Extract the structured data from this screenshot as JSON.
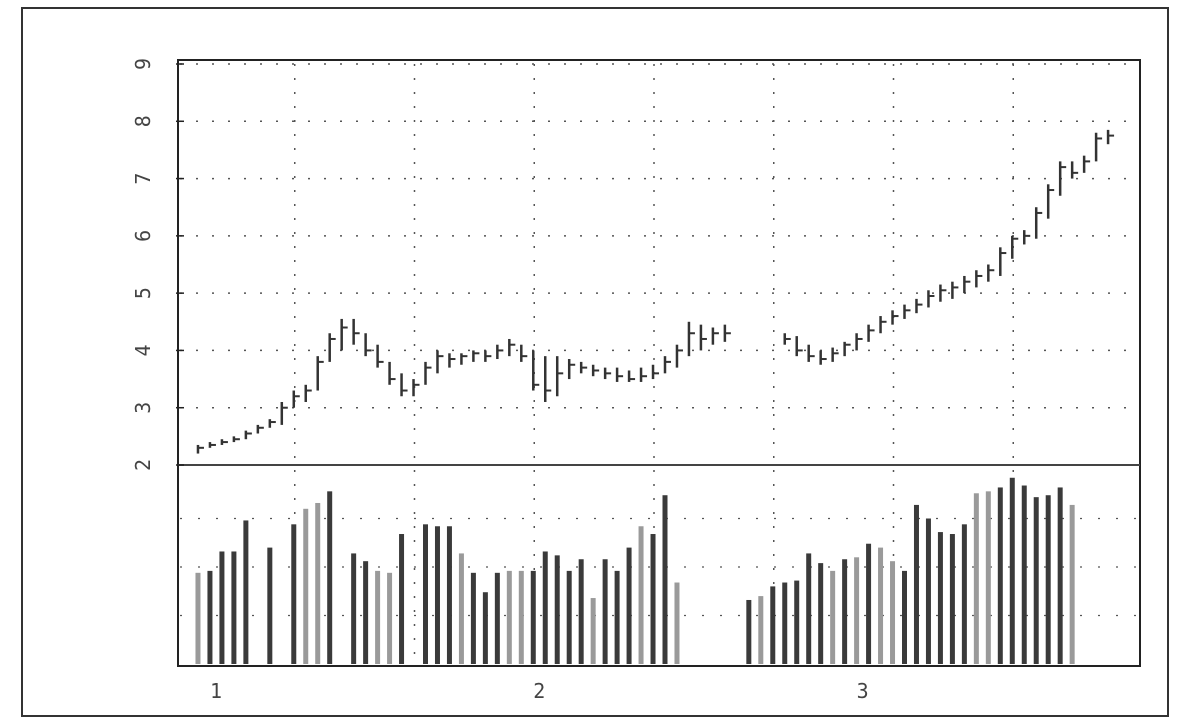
{
  "chart_data": {
    "type": "bar",
    "title": "",
    "xlabel": "",
    "ylabel": "",
    "price_panel": {
      "style": "ohlc-bars",
      "ylim": [
        2,
        9
      ],
      "y_ticks": [
        {
          "value": 3,
          "label": "3"
        },
        {
          "value": 4,
          "label": "4"
        },
        {
          "value": 5,
          "label": "5"
        },
        {
          "value": 6,
          "label": "6"
        },
        {
          "value": 7,
          "label": "7"
        },
        {
          "value": 8,
          "label": "8"
        },
        {
          "value": 9,
          "label": "9"
        }
      ],
      "baseline_label": "2",
      "series": [
        {
          "x": 1,
          "high": 2.35,
          "low": 2.2,
          "close": 2.3
        },
        {
          "x": 2,
          "high": 2.4,
          "low": 2.3,
          "close": 2.35
        },
        {
          "x": 3,
          "high": 2.45,
          "low": 2.35,
          "close": 2.4
        },
        {
          "x": 4,
          "high": 2.5,
          "low": 2.4,
          "close": 2.45
        },
        {
          "x": 5,
          "high": 2.6,
          "low": 2.45,
          "close": 2.55
        },
        {
          "x": 6,
          "high": 2.7,
          "low": 2.55,
          "close": 2.65
        },
        {
          "x": 7,
          "high": 2.8,
          "low": 2.65,
          "close": 2.75
        },
        {
          "x": 8,
          "high": 3.1,
          "low": 2.7,
          "close": 3.0
        },
        {
          "x": 9,
          "high": 3.3,
          "low": 3.0,
          "close": 3.2
        },
        {
          "x": 10,
          "high": 3.4,
          "low": 3.1,
          "close": 3.3
        },
        {
          "x": 11,
          "high": 3.9,
          "low": 3.3,
          "close": 3.8
        },
        {
          "x": 12,
          "high": 4.3,
          "low": 3.8,
          "close": 4.2
        },
        {
          "x": 13,
          "high": 4.55,
          "low": 4.0,
          "close": 4.4
        },
        {
          "x": 14,
          "high": 4.55,
          "low": 4.1,
          "close": 4.3
        },
        {
          "x": 15,
          "high": 4.3,
          "low": 3.9,
          "close": 4.0
        },
        {
          "x": 16,
          "high": 4.1,
          "low": 3.7,
          "close": 3.8
        },
        {
          "x": 17,
          "high": 3.8,
          "low": 3.4,
          "close": 3.5
        },
        {
          "x": 18,
          "high": 3.6,
          "low": 3.2,
          "close": 3.3
        },
        {
          "x": 19,
          "high": 3.5,
          "low": 3.2,
          "close": 3.4
        },
        {
          "x": 20,
          "high": 3.8,
          "low": 3.4,
          "close": 3.7
        },
        {
          "x": 21,
          "high": 4.0,
          "low": 3.6,
          "close": 3.9
        },
        {
          "x": 22,
          "high": 3.95,
          "low": 3.7,
          "close": 3.85
        },
        {
          "x": 23,
          "high": 3.95,
          "low": 3.75,
          "close": 3.9
        },
        {
          "x": 24,
          "high": 4.0,
          "low": 3.8,
          "close": 3.95
        },
        {
          "x": 25,
          "high": 4.0,
          "low": 3.8,
          "close": 3.9
        },
        {
          "x": 26,
          "high": 4.1,
          "low": 3.85,
          "close": 4.0
        },
        {
          "x": 27,
          "high": 4.2,
          "low": 3.9,
          "close": 4.1
        },
        {
          "x": 28,
          "high": 4.1,
          "low": 3.8,
          "close": 3.9
        },
        {
          "x": 29,
          "high": 4.0,
          "low": 3.3,
          "close": 3.4
        },
        {
          "x": 30,
          "high": 3.9,
          "low": 3.1,
          "close": 3.3
        },
        {
          "x": 31,
          "high": 3.9,
          "low": 3.2,
          "close": 3.6
        },
        {
          "x": 32,
          "high": 3.85,
          "low": 3.5,
          "close": 3.75
        },
        {
          "x": 33,
          "high": 3.8,
          "low": 3.6,
          "close": 3.7
        },
        {
          "x": 34,
          "high": 3.75,
          "low": 3.55,
          "close": 3.65
        },
        {
          "x": 35,
          "high": 3.7,
          "low": 3.5,
          "close": 3.6
        },
        {
          "x": 36,
          "high": 3.7,
          "low": 3.45,
          "close": 3.55
        },
        {
          "x": 37,
          "high": 3.65,
          "low": 3.45,
          "close": 3.5
        },
        {
          "x": 38,
          "high": 3.7,
          "low": 3.45,
          "close": 3.55
        },
        {
          "x": 39,
          "high": 3.75,
          "low": 3.5,
          "close": 3.6
        },
        {
          "x": 40,
          "high": 3.9,
          "low": 3.6,
          "close": 3.8
        },
        {
          "x": 41,
          "high": 4.1,
          "low": 3.7,
          "close": 4.0
        },
        {
          "x": 42,
          "high": 4.5,
          "low": 3.9,
          "close": 4.3
        },
        {
          "x": 43,
          "high": 4.45,
          "low": 4.0,
          "close": 4.2
        },
        {
          "x": 44,
          "high": 4.4,
          "low": 4.1,
          "close": 4.3
        },
        {
          "x": 45,
          "high": 4.45,
          "low": 4.15,
          "close": 4.3
        },
        {
          "x": 50,
          "high": 4.3,
          "low": 4.1,
          "close": 4.2
        },
        {
          "x": 51,
          "high": 4.25,
          "low": 3.9,
          "close": 4.0
        },
        {
          "x": 52,
          "high": 4.1,
          "low": 3.8,
          "close": 3.9
        },
        {
          "x": 53,
          "high": 4.0,
          "low": 3.75,
          "close": 3.85
        },
        {
          "x": 54,
          "high": 4.05,
          "low": 3.8,
          "close": 3.95
        },
        {
          "x": 55,
          "high": 4.15,
          "low": 3.9,
          "close": 4.1
        },
        {
          "x": 56,
          "high": 4.3,
          "low": 4.0,
          "close": 4.2
        },
        {
          "x": 57,
          "high": 4.45,
          "low": 4.15,
          "close": 4.35
        },
        {
          "x": 58,
          "high": 4.6,
          "low": 4.3,
          "close": 4.5
        },
        {
          "x": 59,
          "high": 4.7,
          "low": 4.45,
          "close": 4.6
        },
        {
          "x": 60,
          "high": 4.8,
          "low": 4.55,
          "close": 4.7
        },
        {
          "x": 61,
          "high": 4.9,
          "low": 4.65,
          "close": 4.8
        },
        {
          "x": 62,
          "high": 5.05,
          "low": 4.75,
          "close": 4.95
        },
        {
          "x": 63,
          "high": 5.15,
          "low": 4.85,
          "close": 5.05
        },
        {
          "x": 64,
          "high": 5.2,
          "low": 4.9,
          "close": 5.1
        },
        {
          "x": 65,
          "high": 5.3,
          "low": 5.0,
          "close": 5.2
        },
        {
          "x": 66,
          "high": 5.4,
          "low": 5.1,
          "close": 5.3
        },
        {
          "x": 67,
          "high": 5.5,
          "low": 5.2,
          "close": 5.4
        },
        {
          "x": 68,
          "high": 5.8,
          "low": 5.3,
          "close": 5.7
        },
        {
          "x": 69,
          "high": 6.0,
          "low": 5.6,
          "close": 5.95
        },
        {
          "x": 70,
          "high": 6.1,
          "low": 5.85,
          "close": 6.0
        },
        {
          "x": 71,
          "high": 6.5,
          "low": 5.95,
          "close": 6.4
        },
        {
          "x": 72,
          "high": 6.9,
          "low": 6.3,
          "close": 6.8
        },
        {
          "x": 73,
          "high": 7.3,
          "low": 6.7,
          "close": 7.2
        },
        {
          "x": 74,
          "high": 7.3,
          "low": 7.0,
          "close": 7.1
        },
        {
          "x": 75,
          "high": 7.4,
          "low": 7.1,
          "close": 7.3
        },
        {
          "x": 76,
          "high": 7.8,
          "low": 7.3,
          "close": 7.7
        },
        {
          "x": 77,
          "high": 7.85,
          "low": 7.6,
          "close": 7.75
        }
      ]
    },
    "volume_panel": {
      "style": "vertical-bars",
      "ymax": 100,
      "values": [
        {
          "x": 1,
          "v": 47,
          "tone": "light"
        },
        {
          "x": 2,
          "v": 48,
          "tone": "dark"
        },
        {
          "x": 3,
          "v": 58,
          "tone": "dark"
        },
        {
          "x": 4,
          "v": 58,
          "tone": "dark"
        },
        {
          "x": 5,
          "v": 74,
          "tone": "dark"
        },
        {
          "x": 7,
          "v": 60,
          "tone": "dark"
        },
        {
          "x": 9,
          "v": 72,
          "tone": "dark"
        },
        {
          "x": 10,
          "v": 80,
          "tone": "light"
        },
        {
          "x": 11,
          "v": 83,
          "tone": "light"
        },
        {
          "x": 12,
          "v": 89,
          "tone": "dark"
        },
        {
          "x": 14,
          "v": 57,
          "tone": "dark"
        },
        {
          "x": 15,
          "v": 53,
          "tone": "dark"
        },
        {
          "x": 16,
          "v": 48,
          "tone": "light"
        },
        {
          "x": 17,
          "v": 47,
          "tone": "light"
        },
        {
          "x": 18,
          "v": 67,
          "tone": "dark"
        },
        {
          "x": 20,
          "v": 72,
          "tone": "dark"
        },
        {
          "x": 21,
          "v": 71,
          "tone": "dark"
        },
        {
          "x": 22,
          "v": 71,
          "tone": "dark"
        },
        {
          "x": 23,
          "v": 57,
          "tone": "light"
        },
        {
          "x": 24,
          "v": 47,
          "tone": "dark"
        },
        {
          "x": 25,
          "v": 37,
          "tone": "dark"
        },
        {
          "x": 26,
          "v": 47,
          "tone": "dark"
        },
        {
          "x": 27,
          "v": 48,
          "tone": "light"
        },
        {
          "x": 28,
          "v": 48,
          "tone": "light"
        },
        {
          "x": 29,
          "v": 48,
          "tone": "dark"
        },
        {
          "x": 30,
          "v": 58,
          "tone": "dark"
        },
        {
          "x": 31,
          "v": 56,
          "tone": "dark"
        },
        {
          "x": 32,
          "v": 48,
          "tone": "dark"
        },
        {
          "x": 33,
          "v": 54,
          "tone": "dark"
        },
        {
          "x": 34,
          "v": 34,
          "tone": "light"
        },
        {
          "x": 35,
          "v": 54,
          "tone": "dark"
        },
        {
          "x": 36,
          "v": 48,
          "tone": "dark"
        },
        {
          "x": 37,
          "v": 60,
          "tone": "dark"
        },
        {
          "x": 38,
          "v": 71,
          "tone": "light"
        },
        {
          "x": 39,
          "v": 67,
          "tone": "dark"
        },
        {
          "x": 40,
          "v": 87,
          "tone": "dark"
        },
        {
          "x": 41,
          "v": 42,
          "tone": "light"
        },
        {
          "x": 47,
          "v": 33,
          "tone": "dark"
        },
        {
          "x": 48,
          "v": 35,
          "tone": "light"
        },
        {
          "x": 49,
          "v": 40,
          "tone": "dark"
        },
        {
          "x": 50,
          "v": 42,
          "tone": "dark"
        },
        {
          "x": 51,
          "v": 43,
          "tone": "dark"
        },
        {
          "x": 52,
          "v": 57,
          "tone": "dark"
        },
        {
          "x": 53,
          "v": 52,
          "tone": "dark"
        },
        {
          "x": 54,
          "v": 48,
          "tone": "light"
        },
        {
          "x": 55,
          "v": 54,
          "tone": "dark"
        },
        {
          "x": 56,
          "v": 55,
          "tone": "light"
        },
        {
          "x": 57,
          "v": 62,
          "tone": "dark"
        },
        {
          "x": 58,
          "v": 60,
          "tone": "light"
        },
        {
          "x": 59,
          "v": 53,
          "tone": "light"
        },
        {
          "x": 60,
          "v": 48,
          "tone": "dark"
        },
        {
          "x": 61,
          "v": 82,
          "tone": "dark"
        },
        {
          "x": 62,
          "v": 75,
          "tone": "dark"
        },
        {
          "x": 63,
          "v": 68,
          "tone": "dark"
        },
        {
          "x": 64,
          "v": 67,
          "tone": "dark"
        },
        {
          "x": 65,
          "v": 72,
          "tone": "dark"
        },
        {
          "x": 66,
          "v": 88,
          "tone": "light"
        },
        {
          "x": 67,
          "v": 89,
          "tone": "light"
        },
        {
          "x": 68,
          "v": 91,
          "tone": "dark"
        },
        {
          "x": 69,
          "v": 96,
          "tone": "dark"
        },
        {
          "x": 70,
          "v": 92,
          "tone": "dark"
        },
        {
          "x": 71,
          "v": 86,
          "tone": "dark"
        },
        {
          "x": 72,
          "v": 87,
          "tone": "dark"
        },
        {
          "x": 73,
          "v": 91,
          "tone": "dark"
        },
        {
          "x": 74,
          "v": 82,
          "tone": "light"
        }
      ]
    },
    "x_range": [
      0,
      80
    ],
    "x_ticks": [
      {
        "value": 1,
        "label": "1"
      },
      {
        "value": 28,
        "label": "2"
      },
      {
        "value": 55,
        "label": "3"
      }
    ],
    "grid": true,
    "colors": {
      "dark_bar": "#3a3a3a",
      "light_bar": "#9a9a9a",
      "ohlc": "#333333",
      "grid": "#555555",
      "frame": "#222222",
      "panel_divider": "#555555"
    }
  }
}
